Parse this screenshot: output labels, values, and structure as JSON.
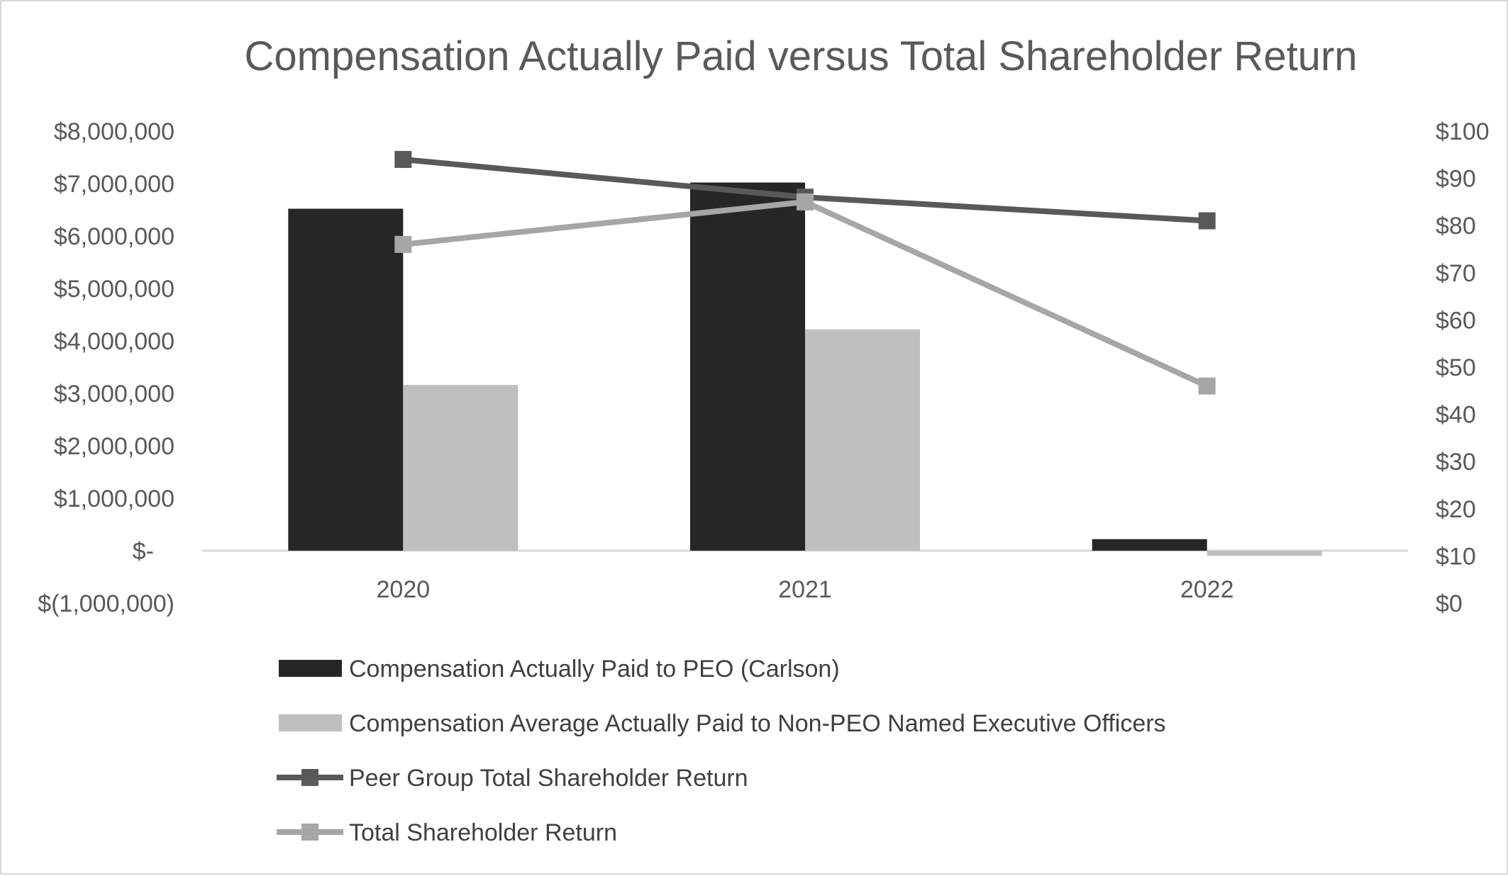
{
  "chart_data": {
    "type": "bar-line-combo",
    "title": "Compensation Actually Paid versus Total Shareholder Return",
    "categories": [
      "2020",
      "2021",
      "2022"
    ],
    "left_axis": {
      "min": -1000000,
      "max": 8000000,
      "step": 1000000,
      "tick_labels": [
        "$(1,000,000)",
        "$-",
        "$1,000,000",
        "$2,000,000",
        "$3,000,000",
        "$4,000,000",
        "$5,000,000",
        "$6,000,000",
        "$7,000,000",
        "$8,000,000"
      ]
    },
    "right_axis": {
      "min": 0,
      "max": 100,
      "step": 10,
      "tick_labels": [
        "$0",
        "$10",
        "$20",
        "$30",
        "$40",
        "$50",
        "$60",
        "$70",
        "$80",
        "$90",
        "$100"
      ]
    },
    "bar_series": [
      {
        "name": "Compensation Actually Paid to PEO (Carlson)",
        "color": "#262626",
        "axis": "left",
        "values": [
          6520000,
          7020000,
          220000
        ]
      },
      {
        "name": "Compensation Average Actually Paid to Non-PEO Named Executive Officers",
        "color": "#bfbfbf",
        "axis": "left",
        "values": [
          3160000,
          4220000,
          -100000
        ]
      }
    ],
    "line_series": [
      {
        "name": "Peer Group Total Shareholder Return",
        "color": "#595959",
        "axis": "right",
        "values": [
          94,
          86,
          81
        ]
      },
      {
        "name": "Total Shareholder Return",
        "color": "#a6a6a6",
        "axis": "right",
        "values": [
          76,
          85,
          46
        ]
      }
    ],
    "legend": [
      {
        "label": "Compensation Actually Paid to PEO (Carlson)",
        "kind": "bar",
        "color": "#262626"
      },
      {
        "label": "Compensation Average Actually Paid to Non-PEO Named Executive Officers",
        "kind": "bar",
        "color": "#bfbfbf"
      },
      {
        "label": "Peer Group Total Shareholder Return",
        "kind": "line",
        "color": "#595959"
      },
      {
        "label": "Total Shareholder Return",
        "kind": "line",
        "color": "#a6a6a6"
      }
    ],
    "legend_position": "bottom",
    "grid": false
  }
}
